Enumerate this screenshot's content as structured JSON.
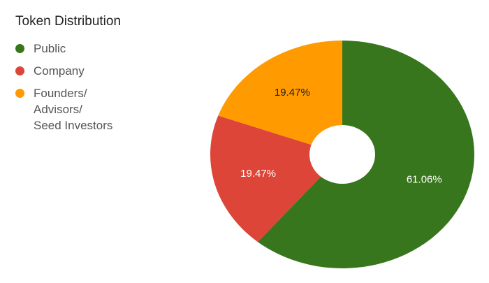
{
  "chart_data": {
    "type": "pie",
    "title": "Token Distribution",
    "donut": true,
    "legend_position": "left",
    "series": [
      {
        "name": "Public",
        "value": 61.06,
        "label": "61.06%",
        "color": "#38761d"
      },
      {
        "name": "Company",
        "value": 19.47,
        "label": "19.47%",
        "color": "#dc4537"
      },
      {
        "name": "Founders/\nAdvisors/\nSeed Investors",
        "value": 19.47,
        "label": "19.47%",
        "color": "#ff9a00"
      }
    ]
  }
}
